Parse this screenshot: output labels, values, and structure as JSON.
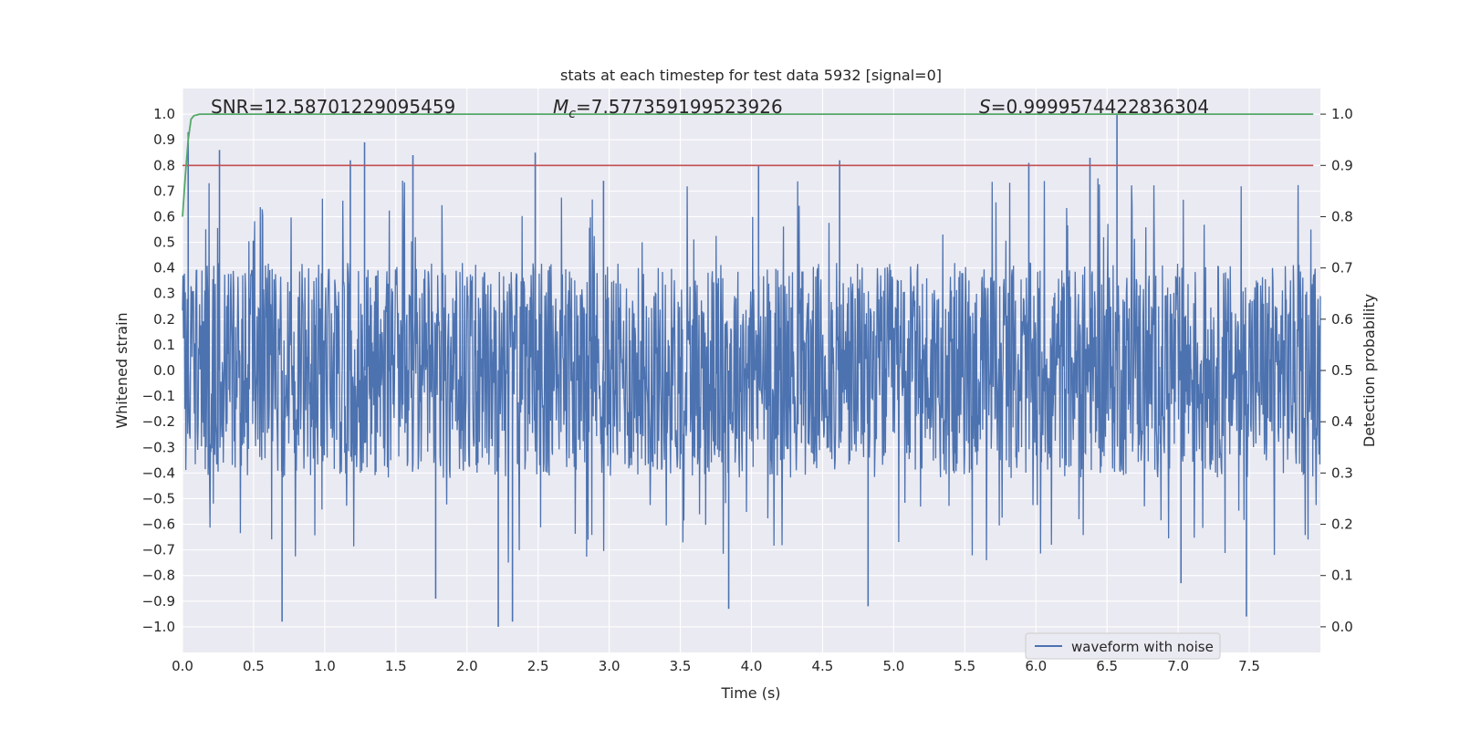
{
  "chart_data": {
    "type": "line",
    "title": "stats at each timestep for test data 5932 [signal=0]",
    "xlabel": "Time (s)",
    "ylabel_left": "Whitened strain",
    "ylabel_right": "Detection probability",
    "xlim": [
      0.0,
      8.0
    ],
    "ylim_left": [
      -1.1,
      1.1
    ],
    "ylim_right": [
      -0.05,
      1.05
    ],
    "x_ticks": [
      "0.0",
      "0.5",
      "1.0",
      "1.5",
      "2.0",
      "2.5",
      "3.0",
      "3.5",
      "4.0",
      "4.5",
      "5.0",
      "5.5",
      "6.0",
      "6.5",
      "7.0",
      "7.5"
    ],
    "y_left_ticks": [
      "1.0",
      "0.9",
      "0.8",
      "0.7",
      "0.6",
      "0.5",
      "0.4",
      "0.3",
      "0.2",
      "0.1",
      "0.0",
      "−0.1",
      "−0.2",
      "−0.3",
      "−0.4",
      "−0.5",
      "−0.6",
      "−0.7",
      "−0.8",
      "−0.9",
      "−1.0"
    ],
    "y_right_ticks": [
      "1.0",
      "0.9",
      "0.8",
      "0.7",
      "0.6",
      "0.5",
      "0.4",
      "0.3",
      "0.2",
      "0.1",
      "0.0"
    ],
    "annotations": {
      "snr": "SNR=12.58701229095459",
      "mc_symbol": "M",
      "mc_sub": "c",
      "mc_value": "=7.577359199523926",
      "s_symbol": "S",
      "s_value": "=0.9999574422836304"
    },
    "grid": true,
    "legend_position": "bottom-right",
    "series": [
      {
        "name": "waveform with noise",
        "axis": "left",
        "color": "#4c72b0",
        "x": [
          0.0,
          8.0
        ],
        "peaks_x": [
          0.04,
          0.26,
          0.7,
          1.18,
          1.28,
          1.62,
          1.78,
          2.22,
          2.32,
          2.48,
          2.96,
          3.84,
          4.05,
          4.62,
          4.82,
          5.95,
          6.38,
          6.57,
          7.02,
          7.48
        ],
        "peaks_y": [
          0.93,
          0.86,
          -0.98,
          0.82,
          0.89,
          0.84,
          -0.89,
          -1.0,
          -0.98,
          0.85,
          0.74,
          -0.93,
          0.8,
          0.82,
          -0.92,
          0.81,
          0.83,
          1.0,
          -0.83,
          -0.96
        ],
        "typical_amplitude": 0.42
      },
      {
        "axis": "right",
        "color": "#55a868",
        "x": [
          0.0,
          0.02,
          0.04,
          0.06,
          0.08,
          0.12,
          7.95
        ],
        "y": [
          0.8,
          0.88,
          0.95,
          0.99,
          0.997,
          1.0,
          1.0
        ]
      },
      {
        "axis": "right",
        "color": "#c44e52",
        "x": [
          0.0,
          7.95
        ],
        "y": [
          0.9,
          0.9
        ]
      }
    ]
  },
  "legend": {
    "label": "waveform with noise"
  },
  "colors": {
    "axes_bg": "#eaeaf2",
    "grid": "#ffffff",
    "waveform": "#4c72b0",
    "probability": "#55a868",
    "threshold": "#c44e52"
  }
}
